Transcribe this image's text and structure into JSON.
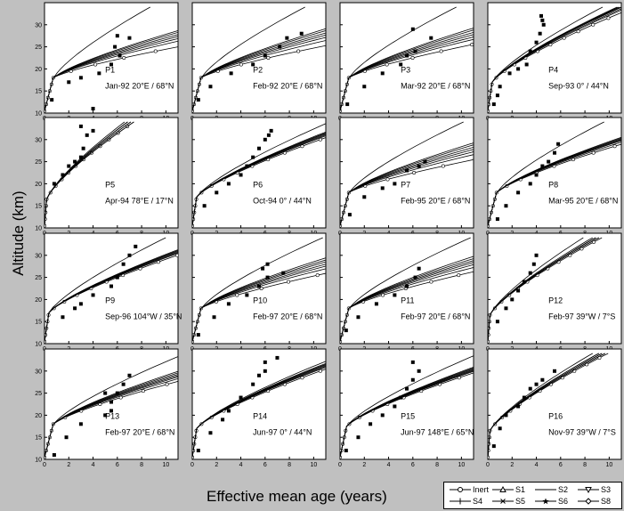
{
  "figure": {
    "xlabel": "Effective mean age (years)",
    "ylabel": "Altitude (km)"
  },
  "legend": {
    "items": [
      {
        "label": "Inert",
        "marker": "circle"
      },
      {
        "label": "S1",
        "marker": "triangle-up"
      },
      {
        "label": "S2",
        "marker": "none"
      },
      {
        "label": "S3",
        "marker": "triangle-down"
      },
      {
        "label": "S4",
        "marker": "plus"
      },
      {
        "label": "S5",
        "marker": "x"
      },
      {
        "label": "S6",
        "marker": "star"
      },
      {
        "label": "S8",
        "marker": "diamond"
      }
    ]
  },
  "chart_data": {
    "type": "line",
    "layout": "4x4 small multiples with shared axes",
    "x_ticks": [
      0,
      2,
      4,
      6,
      8,
      10
    ],
    "y_ticks": [
      10,
      15,
      20,
      25,
      30
    ],
    "xlim": [
      0,
      11
    ],
    "ylim": [
      10,
      35
    ],
    "series_names": [
      "Inert",
      "S1",
      "S2",
      "S3",
      "S4",
      "S5",
      "S6",
      "S8"
    ],
    "observations_marker": "filled square",
    "panels": [
      {
        "id": "P1",
        "label": "Jan-92 20°E / 68°N",
        "tropo": 2.0,
        "ages_25": [
          11.0,
          9.0,
          8.3,
          7.8,
          7.4,
          7.0,
          6.7,
          3.5
        ],
        "obs": [
          [
            0.6,
            13
          ],
          [
            2.0,
            17
          ],
          [
            3.0,
            18
          ],
          [
            4.5,
            19
          ],
          [
            5.5,
            21
          ],
          [
            6.2,
            23
          ],
          [
            5.8,
            25
          ],
          [
            7.0,
            27
          ],
          [
            6.0,
            27.5
          ],
          [
            4.0,
            11
          ]
        ]
      },
      {
        "id": "P2",
        "label": "Feb-92 20°E / 68°N",
        "tropo": 2.0,
        "ages_25": [
          10.5,
          8.8,
          8.0,
          7.5,
          7.1,
          6.7,
          6.4,
          3.7
        ],
        "obs": [
          [
            0.5,
            13
          ],
          [
            1.5,
            16
          ],
          [
            3.2,
            19
          ],
          [
            5.0,
            21
          ],
          [
            6.0,
            23
          ],
          [
            7.2,
            25
          ],
          [
            7.8,
            27
          ],
          [
            9.0,
            28
          ]
        ]
      },
      {
        "id": "P3",
        "label": "Mar-92 20°E / 68°N",
        "tropo": 2.0,
        "ages_25": [
          10.0,
          8.5,
          7.9,
          7.4,
          7.0,
          6.6,
          6.3,
          3.8
        ],
        "obs": [
          [
            0.6,
            12
          ],
          [
            2.0,
            16
          ],
          [
            3.5,
            19
          ],
          [
            5.0,
            21
          ],
          [
            5.5,
            23
          ],
          [
            6.2,
            24
          ],
          [
            6.0,
            29
          ],
          [
            7.5,
            27
          ]
        ]
      },
      {
        "id": "P4",
        "label": "Sep-93 0° / 44°N",
        "tropo": 1.0,
        "ages_25": [
          4.8,
          4.6,
          4.5,
          4.4,
          4.35,
          4.3,
          4.25,
          3.8
        ],
        "obs": [
          [
            0.5,
            12
          ],
          [
            0.8,
            14
          ],
          [
            1.0,
            16
          ],
          [
            1.8,
            19
          ],
          [
            2.5,
            20
          ],
          [
            3.2,
            21
          ],
          [
            3.5,
            24
          ],
          [
            4.0,
            26
          ],
          [
            4.3,
            28
          ],
          [
            4.6,
            30
          ],
          [
            4.5,
            31
          ],
          [
            4.4,
            32
          ]
        ]
      },
      {
        "id": "P5",
        "label": "Apr-94 78°E / 17°N",
        "tropo": 0.5,
        "ages_25": [
          3.0,
          3.0,
          2.9,
          2.9,
          2.8,
          2.8,
          2.8,
          2.7
        ],
        "obs": [
          [
            0.8,
            20
          ],
          [
            1.5,
            22
          ],
          [
            2.0,
            24
          ],
          [
            2.5,
            25
          ],
          [
            3.0,
            26
          ],
          [
            3.2,
            28
          ],
          [
            3.5,
            31
          ],
          [
            4.0,
            32
          ],
          [
            3.0,
            33
          ]
        ]
      },
      {
        "id": "P6",
        "label": "Oct-94 0° / 44°N",
        "tropo": 1.0,
        "ages_25": [
          5.8,
          5.6,
          5.5,
          5.4,
          5.3,
          5.3,
          5.2,
          4.5
        ],
        "obs": [
          [
            1.0,
            15
          ],
          [
            2.0,
            18
          ],
          [
            3.0,
            20
          ],
          [
            4.0,
            22
          ],
          [
            4.5,
            24
          ],
          [
            5.0,
            26
          ],
          [
            5.5,
            28
          ],
          [
            6.0,
            30
          ],
          [
            6.3,
            31
          ],
          [
            6.5,
            32
          ]
        ]
      },
      {
        "id": "P7",
        "label": "Feb-95 20°E / 68°N",
        "tropo": 2.0,
        "ages_25": [
          10.2,
          8.6,
          7.9,
          7.4,
          7.0,
          6.6,
          6.3,
          4.0
        ],
        "obs": [
          [
            0.8,
            13
          ],
          [
            2.0,
            17
          ],
          [
            3.5,
            19
          ],
          [
            4.5,
            20
          ],
          [
            5.5,
            23
          ],
          [
            6.5,
            24
          ],
          [
            7.0,
            25
          ]
        ]
      },
      {
        "id": "P8",
        "label": "Mar-95 20°E / 68°N",
        "tropo": 2.0,
        "ages_25": [
          6.5,
          6.2,
          6.0,
          5.9,
          5.8,
          5.7,
          5.6,
          3.8
        ],
        "obs": [
          [
            0.8,
            12
          ],
          [
            1.5,
            15
          ],
          [
            2.5,
            18
          ],
          [
            3.5,
            20
          ],
          [
            4.0,
            22
          ],
          [
            4.5,
            24
          ],
          [
            5.0,
            25
          ],
          [
            5.5,
            27
          ],
          [
            5.8,
            29
          ]
        ]
      },
      {
        "id": "P9",
        "label": "Sep-96 104°W / 35°N",
        "tropo": 1.0,
        "ages_25": [
          6.0,
          5.8,
          5.7,
          5.6,
          5.5,
          5.5,
          5.4,
          4.0
        ],
        "obs": [
          [
            1.5,
            16
          ],
          [
            2.5,
            18
          ],
          [
            3.0,
            19
          ],
          [
            4.0,
            21
          ],
          [
            5.5,
            23
          ],
          [
            6.0,
            25
          ],
          [
            6.5,
            28
          ],
          [
            7.0,
            30
          ],
          [
            7.5,
            32
          ]
        ]
      },
      {
        "id": "P10",
        "label": "Feb-97 20°E / 68°N",
        "tropo": 2.0,
        "ages_25": [
          9.5,
          8.2,
          7.6,
          7.2,
          6.8,
          6.5,
          6.2,
          4.2
        ],
        "obs": [
          [
            0.5,
            12
          ],
          [
            1.8,
            16
          ],
          [
            3.0,
            19
          ],
          [
            4.5,
            21
          ],
          [
            5.5,
            23
          ],
          [
            6.2,
            25
          ],
          [
            5.8,
            27
          ],
          [
            6.2,
            28
          ],
          [
            7.5,
            26
          ]
        ]
      },
      {
        "id": "P11",
        "label": "Feb-97 20°E / 68°N",
        "tropo": 2.0,
        "ages_25": [
          9.0,
          7.9,
          7.3,
          6.9,
          6.6,
          6.3,
          6.0,
          4.2
        ],
        "obs": [
          [
            0.5,
            13
          ],
          [
            1.5,
            16
          ],
          [
            3.0,
            19
          ],
          [
            4.5,
            21
          ],
          [
            5.5,
            23
          ],
          [
            6.2,
            25
          ],
          [
            6.5,
            27
          ]
        ]
      },
      {
        "id": "P12",
        "label": "Feb-97 39°W / 7°S",
        "tropo": 0.5,
        "ages_25": [
          3.8,
          3.7,
          3.7,
          3.6,
          3.6,
          3.6,
          3.5,
          3.2
        ],
        "obs": [
          [
            0.8,
            15
          ],
          [
            1.5,
            18
          ],
          [
            2.0,
            20
          ],
          [
            2.5,
            22
          ],
          [
            3.0,
            24
          ],
          [
            3.5,
            26
          ],
          [
            3.8,
            28
          ],
          [
            4.0,
            30
          ]
        ]
      },
      {
        "id": "P13",
        "label": "Feb-97 20°E / 68°N",
        "tropo": 2.0,
        "ages_25": [
          7.5,
          7.0,
          6.7,
          6.5,
          6.3,
          6.1,
          5.9,
          4.5
        ],
        "obs": [
          [
            0.8,
            11
          ],
          [
            1.8,
            15
          ],
          [
            3.0,
            18
          ],
          [
            5.0,
            20
          ],
          [
            5.5,
            21
          ],
          [
            5.5,
            23
          ],
          [
            6.0,
            25
          ],
          [
            6.5,
            27
          ],
          [
            7.0,
            29
          ],
          [
            5.0,
            25
          ]
        ]
      },
      {
        "id": "P14",
        "label": "Jun-97 0° / 44°N",
        "tropo": 1.0,
        "ages_25": [
          5.8,
          5.6,
          5.5,
          5.4,
          5.3,
          5.3,
          5.2,
          5.0
        ],
        "obs": [
          [
            0.5,
            12
          ],
          [
            1.5,
            16
          ],
          [
            2.5,
            19
          ],
          [
            3.0,
            21
          ],
          [
            4.0,
            24
          ],
          [
            5.0,
            27
          ],
          [
            5.5,
            29
          ],
          [
            6.0,
            30
          ],
          [
            6.0,
            32
          ],
          [
            7.0,
            33
          ]
        ]
      },
      {
        "id": "P15",
        "label": "Jun-97 148°E / 65°N",
        "tropo": 1.5,
        "ages_25": [
          6.2,
          6.0,
          5.9,
          5.8,
          5.7,
          5.6,
          5.5,
          4.5
        ],
        "obs": [
          [
            0.5,
            12
          ],
          [
            1.5,
            15
          ],
          [
            2.5,
            18
          ],
          [
            3.5,
            20
          ],
          [
            4.5,
            22
          ],
          [
            5.0,
            24
          ],
          [
            5.5,
            26
          ],
          [
            6.0,
            28
          ],
          [
            6.5,
            30
          ],
          [
            6.0,
            32
          ]
        ]
      },
      {
        "id": "P16",
        "label": "Nov-97 39°W / 7°S",
        "tropo": 0.5,
        "ages_25": [
          4.0,
          3.9,
          3.9,
          3.8,
          3.8,
          3.7,
          3.7,
          3.5
        ],
        "obs": [
          [
            0.5,
            13
          ],
          [
            1.0,
            17
          ],
          [
            1.5,
            20
          ],
          [
            2.5,
            22
          ],
          [
            3.0,
            24
          ],
          [
            3.5,
            26
          ],
          [
            4.0,
            27
          ],
          [
            4.5,
            28
          ],
          [
            5.5,
            30
          ]
        ]
      }
    ]
  }
}
